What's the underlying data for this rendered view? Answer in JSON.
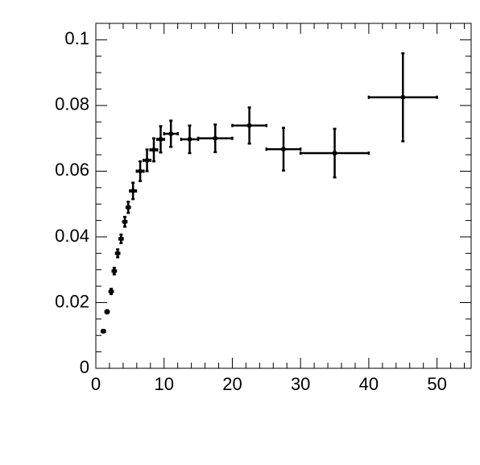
{
  "chart_data": {
    "type": "errorbar",
    "color": "#000000",
    "x": [
      1.1,
      1.65,
      2.25,
      2.7,
      3.2,
      3.7,
      4.25,
      4.75,
      5.45,
      6.5,
      7.5,
      8.5,
      9.5,
      11,
      13.75,
      17.5,
      22.5,
      27.5,
      35,
      45
    ],
    "xerr": [
      0.25,
      0.25,
      0.25,
      0.25,
      0.25,
      0.25,
      0.25,
      0.25,
      0.45,
      0.5,
      0.5,
      0.5,
      0.5,
      1,
      1.25,
      2.5,
      2.5,
      2.5,
      5,
      5
    ],
    "values": [
      0.0113,
      0.0172,
      0.0234,
      0.0296,
      0.035,
      0.0394,
      0.0446,
      0.049,
      0.054,
      0.06,
      0.0633,
      0.0665,
      0.0697,
      0.0714,
      0.0697,
      0.07,
      0.0739,
      0.0667,
      0.0655,
      0.0825
    ],
    "yerr": [
      0.0004,
      0.0005,
      0.0008,
      0.001,
      0.0012,
      0.0013,
      0.0015,
      0.0017,
      0.0025,
      0.003,
      0.0033,
      0.0035,
      0.004,
      0.004,
      0.0042,
      0.0042,
      0.0055,
      0.0065,
      0.0074,
      0.0134
    ],
    "xlim": [
      0,
      55
    ],
    "ylim": [
      0,
      0.105
    ],
    "xticks": [
      0,
      10,
      20,
      30,
      40,
      50
    ],
    "yticks": [
      0,
      0.02,
      0.04,
      0.06,
      0.08,
      0.1
    ],
    "xticks_minor": [
      2,
      4,
      6,
      8,
      12,
      14,
      16,
      18,
      22,
      24,
      26,
      28,
      32,
      34,
      36,
      38,
      42,
      44,
      46,
      48,
      52,
      54
    ],
    "yticks_minor": [
      0.005,
      0.01,
      0.015,
      0.025,
      0.03,
      0.035,
      0.045,
      0.05,
      0.055,
      0.065,
      0.07,
      0.075,
      0.085,
      0.09,
      0.095
    ]
  }
}
